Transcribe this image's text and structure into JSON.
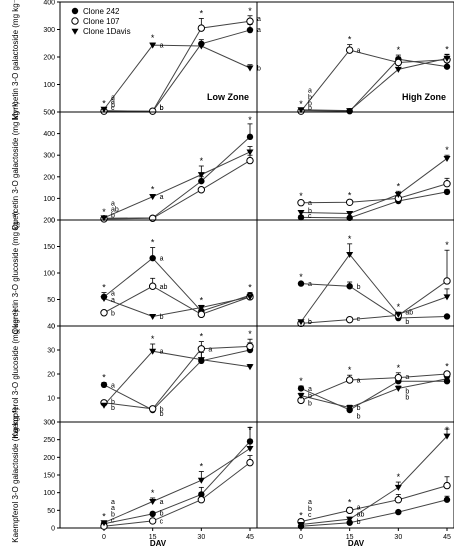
{
  "legend": [
    {
      "name": "Clone 242",
      "marker": "circle-filled"
    },
    {
      "name": "Clone 107",
      "marker": "circle-open"
    },
    {
      "name": "Clone 1Davis",
      "marker": "triangle-down-filled"
    }
  ],
  "zones": [
    "Low Zone",
    "High Zone"
  ],
  "x_title": "DAV",
  "x_ticks": [
    "0",
    "15",
    "30",
    "45"
  ],
  "colors": {
    "marker": "#000000",
    "line": "#444444",
    "grid": "#ffffff"
  },
  "chart_data": [
    {
      "type": "line",
      "row": 0,
      "panel": "Low Zone",
      "ylabel": "Myricetin 3-O galactoside (mg kg⁻¹)",
      "ylim": [
        0,
        400
      ],
      "yticks": [
        0,
        100,
        200,
        300,
        400
      ],
      "x": [
        0,
        15,
        30,
        45
      ],
      "series": [
        {
          "name": "Clone 242",
          "values": [
            5,
            2,
            248,
            298
          ],
          "err": [
            2,
            2,
            15,
            20
          ]
        },
        {
          "name": "Clone 107",
          "values": [
            3,
            3,
            305,
            330
          ],
          "err": [
            2,
            2,
            35,
            20
          ]
        },
        {
          "name": "Clone 1Davis",
          "values": [
            10,
            243,
            240,
            160
          ],
          "err": [
            3,
            8,
            12,
            12
          ]
        }
      ],
      "stars": [
        0,
        1,
        2,
        3
      ],
      "letters": [
        {
          "x": 0,
          "text": "a",
          "pos": 55
        },
        {
          "x": 0,
          "text": "a",
          "pos": 40
        },
        {
          "x": 0,
          "text": "b",
          "pos": 26
        },
        {
          "x": 0,
          "text": "c",
          "pos": 12
        },
        {
          "x": 15,
          "text": "a",
          "pos": 243
        },
        {
          "x": 15,
          "text": "b",
          "pos": 10
        },
        {
          "x": 15,
          "text": "b",
          "pos": 0
        },
        {
          "x": 45,
          "text": "a",
          "pos": 340
        },
        {
          "x": 45,
          "text": "a",
          "pos": 300
        },
        {
          "x": 45,
          "text": "b",
          "pos": 160
        }
      ],
      "zone_label": true
    },
    {
      "type": "line",
      "row": 0,
      "panel": "High Zone",
      "ylim": [
        0,
        400
      ],
      "yticks": [
        0,
        100,
        200,
        300,
        400
      ],
      "x": [
        0,
        15,
        30,
        45
      ],
      "series": [
        {
          "name": "Clone 242",
          "values": [
            5,
            3,
            192,
            165
          ],
          "err": [
            2,
            2,
            15,
            15
          ]
        },
        {
          "name": "Clone 107",
          "values": [
            3,
            225,
            180,
            190
          ],
          "err": [
            2,
            20,
            20,
            18
          ]
        },
        {
          "name": "Clone 1Davis",
          "values": [
            8,
            5,
            155,
            195
          ],
          "err": [
            3,
            2,
            15,
            15
          ]
        }
      ],
      "stars": [
        0,
        1,
        2,
        3
      ],
      "letters": [
        {
          "x": 0,
          "text": "a",
          "pos": 80
        },
        {
          "x": 0,
          "text": "b",
          "pos": 55
        },
        {
          "x": 0,
          "text": "b",
          "pos": 32
        },
        {
          "x": 0,
          "text": "b",
          "pos": 10
        },
        {
          "x": 15,
          "text": "a",
          "pos": 225
        }
      ],
      "zone_label": true
    },
    {
      "type": "line",
      "row": 1,
      "panel": "Low Zone",
      "ylabel": "Quercetin 3-O galactoside (mg kg⁻¹)",
      "ylim": [
        0,
        500
      ],
      "yticks": [
        0,
        100,
        200,
        300,
        400,
        500
      ],
      "x": [
        0,
        15,
        30,
        45
      ],
      "series": [
        {
          "name": "Clone 242",
          "values": [
            8,
            10,
            180,
            385
          ],
          "err": [
            3,
            3,
            20,
            60
          ]
        },
        {
          "name": "Clone 107",
          "values": [
            5,
            8,
            140,
            275
          ],
          "err": [
            2,
            2,
            10,
            25
          ]
        },
        {
          "name": "Clone 1Davis",
          "values": [
            10,
            108,
            210,
            315
          ],
          "err": [
            3,
            10,
            40,
            25
          ]
        }
      ],
      "stars": [
        0,
        1,
        2,
        3
      ],
      "letters": [
        {
          "x": 0,
          "text": "a",
          "pos": 78
        },
        {
          "x": 0,
          "text": "ab",
          "pos": 50
        },
        {
          "x": 0,
          "text": "b",
          "pos": 22
        },
        {
          "x": 15,
          "text": "a",
          "pos": 108
        }
      ]
    },
    {
      "type": "line",
      "row": 1,
      "panel": "High Zone",
      "ylim": [
        0,
        500
      ],
      "yticks": [
        0,
        100,
        200,
        300,
        400,
        500
      ],
      "x": [
        0,
        15,
        30,
        45
      ],
      "series": [
        {
          "name": "Clone 242",
          "values": [
            12,
            10,
            88,
            130
          ],
          "err": [
            3,
            3,
            8,
            10
          ]
        },
        {
          "name": "Clone 107",
          "values": [
            80,
            82,
            100,
            168
          ],
          "err": [
            8,
            8,
            10,
            25
          ]
        },
        {
          "name": "Clone 1Davis",
          "values": [
            35,
            30,
            118,
            285
          ],
          "err": [
            5,
            5,
            15,
            15
          ]
        }
      ],
      "stars": [
        0,
        1,
        2,
        3
      ],
      "letters": [
        {
          "x": 0,
          "text": "a",
          "pos": 80
        },
        {
          "x": 0,
          "text": "b",
          "pos": 45
        },
        {
          "x": 0,
          "text": "c",
          "pos": 12
        },
        {
          "x": 45,
          "text": "a",
          "pos": 285
        },
        {
          "x": 45,
          "text": "b",
          "pos": 170
        },
        {
          "x": 45,
          "text": "b",
          "pos": 130
        }
      ]
    },
    {
      "type": "line",
      "row": 2,
      "panel": "Low Zone",
      "ylabel": "Quercetin 3-O glucoside (mg kg⁻¹)",
      "ylim": [
        0,
        200
      ],
      "yticks": [
        0,
        50,
        100,
        150,
        200
      ],
      "x": [
        0,
        15,
        30,
        45
      ],
      "series": [
        {
          "name": "Clone 242",
          "values": [
            55,
            128,
            28,
            58
          ],
          "err": [
            8,
            20,
            4,
            5
          ]
        },
        {
          "name": "Clone 107",
          "values": [
            25,
            75,
            22,
            55
          ],
          "err": [
            3,
            15,
            3,
            5
          ]
        },
        {
          "name": "Clone 1Davis",
          "values": [
            52,
            18,
            35,
            55
          ],
          "err": [
            4,
            3,
            4,
            4
          ]
        }
      ],
      "stars": [
        0,
        1,
        2,
        3
      ],
      "letters": [
        {
          "x": 0,
          "text": "a",
          "pos": 62
        },
        {
          "x": 0,
          "text": "a",
          "pos": 50
        },
        {
          "x": 0,
          "text": "b",
          "pos": 25
        },
        {
          "x": 15,
          "text": "a",
          "pos": 128
        },
        {
          "x": 15,
          "text": "ab",
          "pos": 75
        },
        {
          "x": 15,
          "text": "b",
          "pos": 18
        }
      ]
    },
    {
      "type": "line",
      "row": 2,
      "panel": "High Zone",
      "ylim": [
        0,
        200
      ],
      "yticks": [
        0,
        50,
        100,
        150,
        200
      ],
      "x": [
        0,
        15,
        30,
        45
      ],
      "series": [
        {
          "name": "Clone 242",
          "values": [
            80,
            75,
            15,
            18
          ],
          "err": [
            3,
            8,
            3,
            3
          ]
        },
        {
          "name": "Clone 107",
          "values": [
            5,
            12,
            20,
            85
          ],
          "err": [
            1,
            2,
            3,
            58
          ]
        },
        {
          "name": "Clone 1Davis",
          "values": [
            8,
            135,
            22,
            55
          ],
          "err": [
            2,
            20,
            4,
            15
          ]
        }
      ],
      "stars": [
        0,
        1,
        2,
        3
      ],
      "letters": [
        {
          "x": 0,
          "text": "a",
          "pos": 80
        },
        {
          "x": 0,
          "text": "b",
          "pos": 8
        },
        {
          "x": 0,
          "text": "c",
          "pos": 0
        },
        {
          "x": 15,
          "text": "b",
          "pos": 75
        },
        {
          "x": 15,
          "text": "c",
          "pos": 14
        },
        {
          "x": 30,
          "text": "b",
          "pos": 8
        },
        {
          "x": 30,
          "text": "ab",
          "pos": 26
        },
        {
          "x": 45,
          "text": "a",
          "pos": 85
        },
        {
          "x": 45,
          "text": "ab",
          "pos": 55
        },
        {
          "x": 45,
          "text": "b",
          "pos": 14
        }
      ]
    },
    {
      "type": "line",
      "row": 3,
      "panel": "Low Zone",
      "ylabel": "Kaempferol 3-O glucoside (mg kg⁻¹)",
      "ylim": [
        0,
        40
      ],
      "yticks": [
        0,
        10,
        20,
        30,
        40
      ],
      "x": [
        0,
        15,
        30,
        45
      ],
      "series": [
        {
          "name": "Clone 242",
          "values": [
            15.5,
            5,
            25.5,
            30
          ],
          "err": [
            1,
            1,
            5,
            3
          ]
        },
        {
          "name": "Clone 107",
          "values": [
            8,
            5.5,
            30.5,
            31.5
          ],
          "err": [
            1,
            1,
            3,
            3
          ]
        },
        {
          "name": "Clone 1Davis",
          "values": [
            7,
            29.5,
            26,
            23
          ],
          "err": [
            1,
            3,
            3,
            1
          ]
        }
      ],
      "stars": [
        0,
        1,
        2,
        3
      ],
      "letters": [
        {
          "x": 0,
          "text": "a",
          "pos": 15.5
        },
        {
          "x": 0,
          "text": "b",
          "pos": 8.5
        },
        {
          "x": 0,
          "text": "b",
          "pos": 6
        },
        {
          "x": 15,
          "text": "a",
          "pos": 29.5
        },
        {
          "x": 15,
          "text": "b",
          "pos": 5.5
        },
        {
          "x": 15,
          "text": "b",
          "pos": 3.5
        },
        {
          "x": 30,
          "text": "a",
          "pos": 30.5
        }
      ]
    },
    {
      "type": "line",
      "row": 3,
      "panel": "High Zone",
      "ylim": [
        0,
        40
      ],
      "yticks": [
        0,
        10,
        20,
        30,
        40
      ],
      "x": [
        0,
        15,
        30,
        45
      ],
      "series": [
        {
          "name": "Clone 242",
          "values": [
            14,
            5,
            17,
            17
          ],
          "err": [
            1,
            1,
            1,
            1
          ]
        },
        {
          "name": "Clone 107",
          "values": [
            9,
            17.5,
            18.5,
            20
          ],
          "err": [
            1,
            2,
            2,
            1
          ]
        },
        {
          "name": "Clone 1Davis",
          "values": [
            11,
            6,
            14,
            18
          ],
          "err": [
            1,
            1,
            1,
            1
          ]
        }
      ],
      "stars": [
        0,
        1,
        2,
        3
      ],
      "letters": [
        {
          "x": 0,
          "text": "a",
          "pos": 14
        },
        {
          "x": 0,
          "text": "b",
          "pos": 11
        },
        {
          "x": 0,
          "text": "b",
          "pos": 8
        },
        {
          "x": 15,
          "text": "a",
          "pos": 17.5
        },
        {
          "x": 15,
          "text": "b",
          "pos": 6
        },
        {
          "x": 15,
          "text": "b",
          "pos": 2.5
        },
        {
          "x": 30,
          "text": "a",
          "pos": 19
        },
        {
          "x": 30,
          "text": "b",
          "pos": 13
        },
        {
          "x": 30,
          "text": "b",
          "pos": 10.5
        },
        {
          "x": 45,
          "text": "a",
          "pos": 20
        }
      ]
    },
    {
      "type": "line",
      "row": 4,
      "panel": "Low Zone",
      "ylabel": "Kaempferol 3-O galactoside (mg kg⁻¹)",
      "ylim": [
        0,
        300
      ],
      "yticks": [
        0,
        50,
        100,
        150,
        200,
        250,
        300
      ],
      "x": [
        0,
        15,
        30,
        45
      ],
      "series": [
        {
          "name": "Clone 242",
          "values": [
            12,
            40,
            95,
            245
          ],
          "err": [
            3,
            5,
            20,
            40
          ]
        },
        {
          "name": "Clone 107",
          "values": [
            5,
            20,
            80,
            185
          ],
          "err": [
            2,
            3,
            10,
            20
          ]
        },
        {
          "name": "Clone 1Davis",
          "values": [
            15,
            75,
            135,
            225
          ],
          "err": [
            3,
            10,
            25,
            20
          ]
        }
      ],
      "stars": [
        0,
        1,
        2,
        3
      ],
      "letters": [
        {
          "x": 0,
          "text": "a",
          "pos": 75
        },
        {
          "x": 0,
          "text": "a",
          "pos": 58
        },
        {
          "x": 0,
          "text": "b",
          "pos": 40
        },
        {
          "x": 0,
          "text": "c",
          "pos": 22
        },
        {
          "x": 15,
          "text": "a",
          "pos": 75
        },
        {
          "x": 15,
          "text": "b",
          "pos": 42
        },
        {
          "x": 15,
          "text": "c",
          "pos": 20
        }
      ]
    },
    {
      "type": "line",
      "row": 4,
      "panel": "High Zone",
      "ylim": [
        0,
        300
      ],
      "yticks": [
        0,
        50,
        100,
        150,
        200,
        250,
        300
      ],
      "x": [
        0,
        15,
        30,
        45
      ],
      "series": [
        {
          "name": "Clone 242",
          "values": [
            5,
            15,
            45,
            80
          ],
          "err": [
            2,
            3,
            5,
            10
          ]
        },
        {
          "name": "Clone 107",
          "values": [
            18,
            50,
            80,
            120
          ],
          "err": [
            3,
            8,
            15,
            25
          ]
        },
        {
          "name": "Clone 1Davis",
          "values": [
            10,
            25,
            115,
            260
          ],
          "err": [
            2,
            5,
            15,
            20
          ]
        }
      ],
      "stars": [
        0,
        1,
        2,
        3
      ],
      "letters": [
        {
          "x": 0,
          "text": "a",
          "pos": 75
        },
        {
          "x": 0,
          "text": "b",
          "pos": 55
        },
        {
          "x": 0,
          "text": "c",
          "pos": 38
        },
        {
          "x": 15,
          "text": "a",
          "pos": 60
        },
        {
          "x": 15,
          "text": "ab",
          "pos": 40
        },
        {
          "x": 15,
          "text": "b",
          "pos": 18
        },
        {
          "x": 45,
          "text": "a",
          "pos": 260
        },
        {
          "x": 45,
          "text": "b",
          "pos": 120
        },
        {
          "x": 45,
          "text": "b",
          "pos": 80
        }
      ]
    }
  ]
}
